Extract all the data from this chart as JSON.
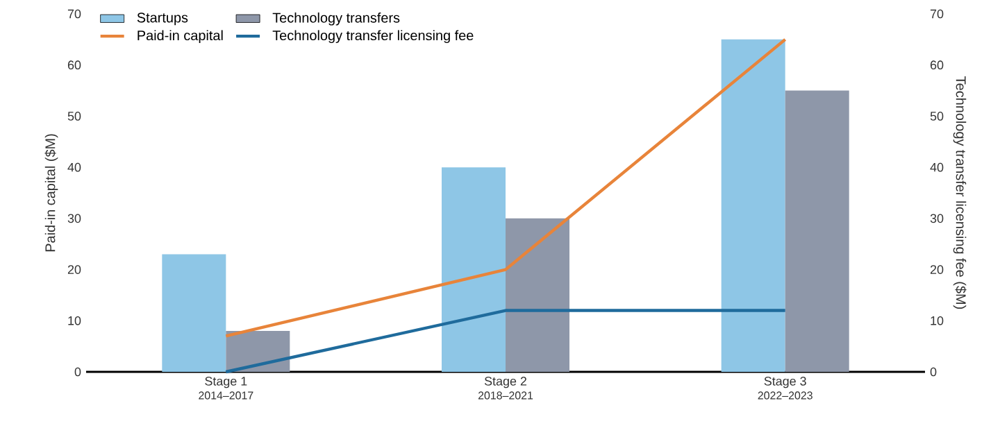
{
  "chart_data": {
    "type": "bar",
    "categories": [
      "Stage 1",
      "Stage 2",
      "Stage 3"
    ],
    "annotations": [
      "2014–2017",
      "2018–2021",
      "2022–2023"
    ],
    "ylabel": "Paid-in capital ($M)",
    "y2label": "Technology transfer licensing fee ($M)",
    "ylim": [
      0,
      70
    ],
    "yticks": [
      0,
      10,
      20,
      30,
      40,
      50,
      60,
      70
    ],
    "y2lim": [
      0,
      70
    ],
    "y2ticks": [
      0,
      10,
      20,
      30,
      40,
      50,
      60,
      70
    ],
    "legend": "top left",
    "grid": false,
    "marker": "none",
    "series": [
      {
        "name": "Startups",
        "color": "#8ec6e6",
        "values": [
          23,
          40,
          65
        ]
      },
      {
        "name": "Technology transfers",
        "color": "#8e97a9",
        "values": [
          8,
          30,
          55
        ]
      },
      {
        "name": "Paid-in capital",
        "type": "line",
        "color": "#e8843a",
        "values": [
          7,
          20,
          65
        ]
      },
      {
        "name": "Technology transfer licensing fee",
        "type": "line",
        "axis": "y2",
        "color": "#1f6b9c",
        "values": [
          0,
          12,
          12
        ]
      }
    ]
  }
}
